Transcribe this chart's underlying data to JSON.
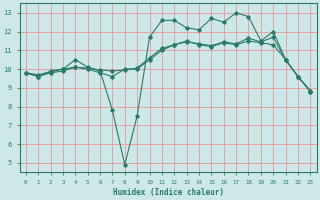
{
  "title": "",
  "xlabel": "Humidex (Indice chaleur)",
  "ylabel": "",
  "xlim": [
    -0.5,
    23.5
  ],
  "ylim": [
    4.5,
    13.5
  ],
  "xticks": [
    0,
    1,
    2,
    3,
    4,
    5,
    6,
    7,
    8,
    9,
    10,
    11,
    12,
    13,
    14,
    15,
    16,
    17,
    18,
    19,
    20,
    21,
    22,
    23
  ],
  "yticks": [
    5,
    6,
    7,
    8,
    9,
    10,
    11,
    12,
    13
  ],
  "bg_color": "#cce8e8",
  "grid_color": "#e8a0a0",
  "line_color": "#2a7a6a",
  "line1_x": [
    0,
    1,
    2,
    3,
    4,
    5,
    6,
    7,
    8,
    9,
    10,
    11,
    12,
    13,
    14,
    15,
    16,
    17,
    18,
    19,
    20,
    21,
    22,
    23
  ],
  "line1_y": [
    9.8,
    9.6,
    9.8,
    9.9,
    10.1,
    10.0,
    9.8,
    9.6,
    10.0,
    10.0,
    10.5,
    11.0,
    11.3,
    11.5,
    11.3,
    11.2,
    11.4,
    11.3,
    11.5,
    11.4,
    11.3,
    10.5,
    9.6,
    8.8
  ],
  "line2_x": [
    0,
    1,
    2,
    3,
    4,
    5,
    6,
    7,
    8,
    9,
    10,
    11,
    12,
    13,
    14,
    15,
    16,
    17,
    18,
    19,
    20,
    21,
    22,
    23
  ],
  "line2_y": [
    9.8,
    9.6,
    9.9,
    10.0,
    10.5,
    10.1,
    9.9,
    7.8,
    4.9,
    7.5,
    11.7,
    12.6,
    12.6,
    12.2,
    12.1,
    12.7,
    12.5,
    13.0,
    12.8,
    11.5,
    12.0,
    10.5,
    9.6,
    8.8
  ],
  "line3_x": [
    0,
    1,
    2,
    3,
    4,
    5,
    6,
    7,
    8,
    9,
    10,
    11,
    12,
    13,
    14,
    15,
    16,
    17,
    18,
    19,
    20,
    21,
    22,
    23
  ],
  "line3_y": [
    9.8,
    9.7,
    9.85,
    10.0,
    10.1,
    10.05,
    9.95,
    9.9,
    9.95,
    10.05,
    10.6,
    11.1,
    11.3,
    11.45,
    11.35,
    11.25,
    11.45,
    11.35,
    11.65,
    11.45,
    11.7,
    10.5,
    9.6,
    8.85
  ]
}
